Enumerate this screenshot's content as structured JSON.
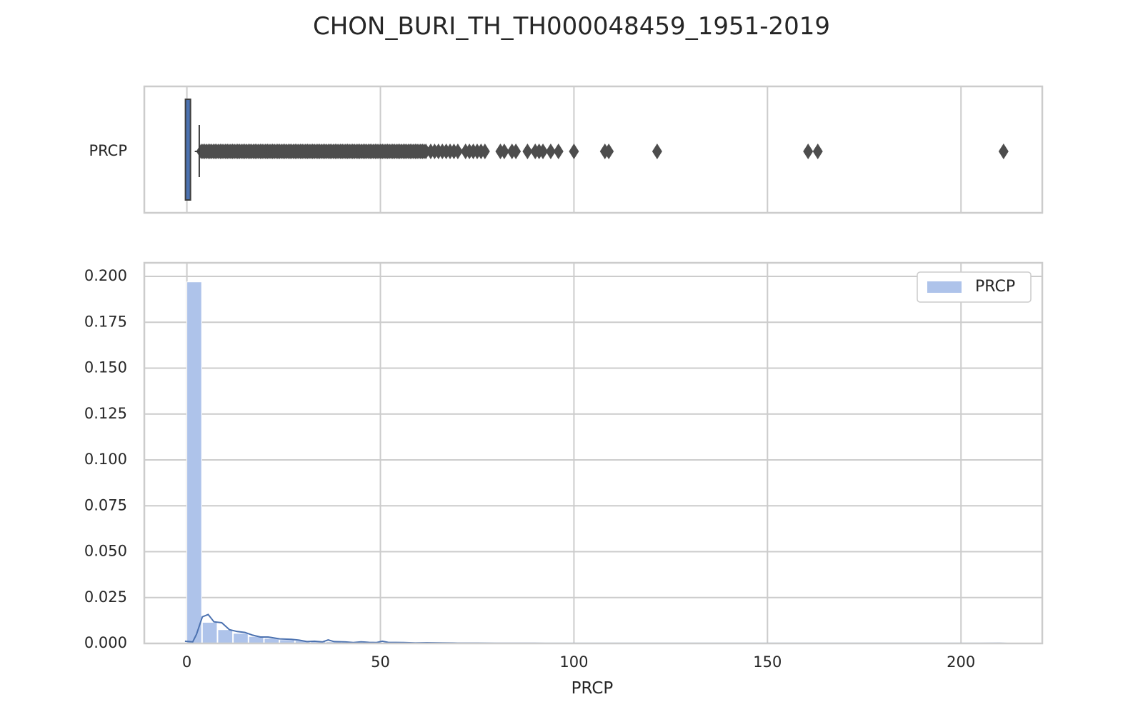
{
  "chart_data": [
    {
      "type": "box",
      "title": "CHON_BURI_TH_TH000048459_1951-2019",
      "category_label": "PRCP",
      "xlim": [
        -11,
        221
      ],
      "xticks": [
        0,
        50,
        100,
        150,
        200
      ],
      "grid": true,
      "box": {
        "q1": 0.0,
        "median": 0.0,
        "q3": 1.3,
        "whisker_low": 0.0,
        "whisker_high": 3.2,
        "color": "#4c72b0"
      },
      "outlier_dense_range": [
        3.2,
        62
      ],
      "outliers": [
        63,
        64,
        65,
        66,
        67,
        68,
        69,
        70,
        72,
        73,
        74,
        75,
        76,
        77,
        81,
        82,
        84,
        85,
        88,
        90,
        91,
        92,
        94,
        96,
        100,
        108,
        109,
        121.5,
        160.5,
        163,
        211
      ],
      "outlier_color": "#4d4d4d"
    },
    {
      "type": "histogram",
      "xlabel": "PRCP",
      "ylabel": "",
      "xlim": [
        -11,
        221
      ],
      "ylim": [
        0,
        0.2
      ],
      "xticks": [
        0,
        50,
        100,
        150,
        200
      ],
      "yticks": [
        "0.000",
        "0.025",
        "0.050",
        "0.075",
        "0.100",
        "0.125",
        "0.150",
        "0.175",
        "0.200"
      ],
      "grid": true,
      "legend": {
        "position": "top-right",
        "entries": [
          "PRCP"
        ]
      },
      "bar_color": "#aec3ea",
      "kde_color": "#4c72b0",
      "bins": [
        {
          "x0": 0,
          "x1": 4,
          "h": 0.197
        },
        {
          "x0": 4,
          "x1": 8,
          "h": 0.0115
        },
        {
          "x0": 8,
          "x1": 12,
          "h": 0.0075
        },
        {
          "x0": 12,
          "x1": 16,
          "h": 0.0055
        },
        {
          "x0": 16,
          "x1": 20,
          "h": 0.0038
        },
        {
          "x0": 20,
          "x1": 24,
          "h": 0.0028
        },
        {
          "x0": 24,
          "x1": 28,
          "h": 0.002
        },
        {
          "x0": 28,
          "x1": 32,
          "h": 0.0015
        },
        {
          "x0": 32,
          "x1": 36,
          "h": 0.0012
        },
        {
          "x0": 36,
          "x1": 40,
          "h": 0.0009
        },
        {
          "x0": 40,
          "x1": 44,
          "h": 0.0007
        },
        {
          "x0": 44,
          "x1": 48,
          "h": 0.0005
        },
        {
          "x0": 48,
          "x1": 52,
          "h": 0.0004
        },
        {
          "x0": 52,
          "x1": 56,
          "h": 0.0003
        },
        {
          "x0": 56,
          "x1": 60,
          "h": 0.00025
        },
        {
          "x0": 60,
          "x1": 64,
          "h": 0.0002
        },
        {
          "x0": 64,
          "x1": 68,
          "h": 0.00015
        },
        {
          "x0": 68,
          "x1": 72,
          "h": 0.0001
        },
        {
          "x0": 72,
          "x1": 76,
          "h": 0.0001
        },
        {
          "x0": 76,
          "x1": 80,
          "h": 5e-05
        }
      ],
      "kde": [
        [
          -0.5,
          0.0012
        ],
        [
          1.5,
          0.0008
        ],
        [
          2.5,
          0.005
        ],
        [
          4,
          0.0145
        ],
        [
          5.5,
          0.0158
        ],
        [
          7,
          0.0118
        ],
        [
          9,
          0.0113
        ],
        [
          11,
          0.0075
        ],
        [
          13,
          0.0065
        ],
        [
          15,
          0.006
        ],
        [
          17,
          0.0045
        ],
        [
          19,
          0.0035
        ],
        [
          21,
          0.0035
        ],
        [
          24,
          0.0025
        ],
        [
          27,
          0.0022
        ],
        [
          29,
          0.0018
        ],
        [
          31,
          0.001
        ],
        [
          33,
          0.0012
        ],
        [
          35,
          0.0008
        ],
        [
          36.5,
          0.0019
        ],
        [
          38,
          0.001
        ],
        [
          41,
          0.0008
        ],
        [
          43,
          0.0005
        ],
        [
          45,
          0.0009
        ],
        [
          47,
          0.0006
        ],
        [
          49,
          0.0005
        ],
        [
          50.5,
          0.0012
        ],
        [
          52,
          0.0006
        ],
        [
          56,
          0.0005
        ],
        [
          59,
          0.0003
        ],
        [
          62,
          0.0004
        ],
        [
          66,
          0.0003
        ],
        [
          70,
          0.0002
        ],
        [
          75,
          0.0002
        ],
        [
          80,
          0.0001
        ],
        [
          90,
          8e-05
        ],
        [
          100,
          5e-05
        ],
        [
          110,
          4e-05
        ],
        [
          120,
          3e-05
        ],
        [
          130,
          2e-05
        ],
        [
          140,
          2e-05
        ],
        [
          150,
          2e-05
        ],
        [
          160,
          5e-05
        ],
        [
          165,
          4e-05
        ],
        [
          175,
          2e-05
        ],
        [
          190,
          2e-05
        ],
        [
          200,
          3e-05
        ],
        [
          205,
          4e-05
        ],
        [
          210,
          6e-05
        ],
        [
          212,
          0.0
        ]
      ]
    }
  ]
}
